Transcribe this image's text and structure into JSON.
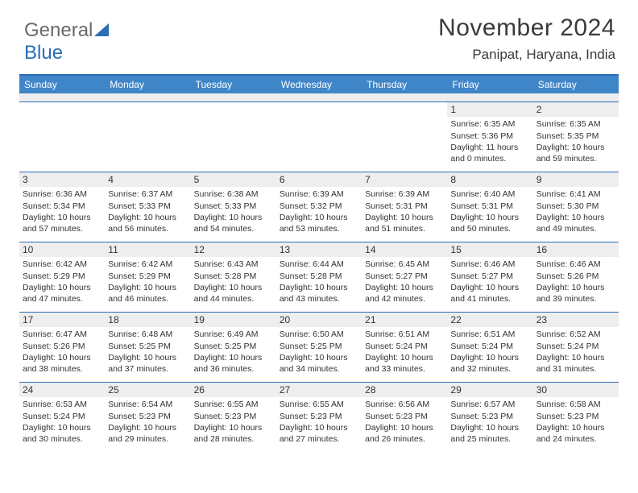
{
  "logo": {
    "part1": "General",
    "part2": "Blue"
  },
  "header": {
    "title": "November 2024",
    "location": "Panipat, Haryana, India"
  },
  "colors": {
    "header_bar": "#3f86c8",
    "border": "#2a6db5",
    "daynum_bg": "#eeeeee",
    "text": "#333333"
  },
  "fonts": {
    "title_size": 30,
    "subtitle_size": 17,
    "dow_size": 12,
    "daynum_size": 12,
    "body_size": 10.5
  },
  "days_of_week": [
    "Sunday",
    "Monday",
    "Tuesday",
    "Wednesday",
    "Thursday",
    "Friday",
    "Saturday"
  ],
  "weeks": [
    [
      null,
      null,
      null,
      null,
      null,
      {
        "n": "1",
        "sunrise": "6:35 AM",
        "sunset": "5:36 PM",
        "daylight": "11 hours and 0 minutes."
      },
      {
        "n": "2",
        "sunrise": "6:35 AM",
        "sunset": "5:35 PM",
        "daylight": "10 hours and 59 minutes."
      }
    ],
    [
      {
        "n": "3",
        "sunrise": "6:36 AM",
        "sunset": "5:34 PM",
        "daylight": "10 hours and 57 minutes."
      },
      {
        "n": "4",
        "sunrise": "6:37 AM",
        "sunset": "5:33 PM",
        "daylight": "10 hours and 56 minutes."
      },
      {
        "n": "5",
        "sunrise": "6:38 AM",
        "sunset": "5:33 PM",
        "daylight": "10 hours and 54 minutes."
      },
      {
        "n": "6",
        "sunrise": "6:39 AM",
        "sunset": "5:32 PM",
        "daylight": "10 hours and 53 minutes."
      },
      {
        "n": "7",
        "sunrise": "6:39 AM",
        "sunset": "5:31 PM",
        "daylight": "10 hours and 51 minutes."
      },
      {
        "n": "8",
        "sunrise": "6:40 AM",
        "sunset": "5:31 PM",
        "daylight": "10 hours and 50 minutes."
      },
      {
        "n": "9",
        "sunrise": "6:41 AM",
        "sunset": "5:30 PM",
        "daylight": "10 hours and 49 minutes."
      }
    ],
    [
      {
        "n": "10",
        "sunrise": "6:42 AM",
        "sunset": "5:29 PM",
        "daylight": "10 hours and 47 minutes."
      },
      {
        "n": "11",
        "sunrise": "6:42 AM",
        "sunset": "5:29 PM",
        "daylight": "10 hours and 46 minutes."
      },
      {
        "n": "12",
        "sunrise": "6:43 AM",
        "sunset": "5:28 PM",
        "daylight": "10 hours and 44 minutes."
      },
      {
        "n": "13",
        "sunrise": "6:44 AM",
        "sunset": "5:28 PM",
        "daylight": "10 hours and 43 minutes."
      },
      {
        "n": "14",
        "sunrise": "6:45 AM",
        "sunset": "5:27 PM",
        "daylight": "10 hours and 42 minutes."
      },
      {
        "n": "15",
        "sunrise": "6:46 AM",
        "sunset": "5:27 PM",
        "daylight": "10 hours and 41 minutes."
      },
      {
        "n": "16",
        "sunrise": "6:46 AM",
        "sunset": "5:26 PM",
        "daylight": "10 hours and 39 minutes."
      }
    ],
    [
      {
        "n": "17",
        "sunrise": "6:47 AM",
        "sunset": "5:26 PM",
        "daylight": "10 hours and 38 minutes."
      },
      {
        "n": "18",
        "sunrise": "6:48 AM",
        "sunset": "5:25 PM",
        "daylight": "10 hours and 37 minutes."
      },
      {
        "n": "19",
        "sunrise": "6:49 AM",
        "sunset": "5:25 PM",
        "daylight": "10 hours and 36 minutes."
      },
      {
        "n": "20",
        "sunrise": "6:50 AM",
        "sunset": "5:25 PM",
        "daylight": "10 hours and 34 minutes."
      },
      {
        "n": "21",
        "sunrise": "6:51 AM",
        "sunset": "5:24 PM",
        "daylight": "10 hours and 33 minutes."
      },
      {
        "n": "22",
        "sunrise": "6:51 AM",
        "sunset": "5:24 PM",
        "daylight": "10 hours and 32 minutes."
      },
      {
        "n": "23",
        "sunrise": "6:52 AM",
        "sunset": "5:24 PM",
        "daylight": "10 hours and 31 minutes."
      }
    ],
    [
      {
        "n": "24",
        "sunrise": "6:53 AM",
        "sunset": "5:24 PM",
        "daylight": "10 hours and 30 minutes."
      },
      {
        "n": "25",
        "sunrise": "6:54 AM",
        "sunset": "5:23 PM",
        "daylight": "10 hours and 29 minutes."
      },
      {
        "n": "26",
        "sunrise": "6:55 AM",
        "sunset": "5:23 PM",
        "daylight": "10 hours and 28 minutes."
      },
      {
        "n": "27",
        "sunrise": "6:55 AM",
        "sunset": "5:23 PM",
        "daylight": "10 hours and 27 minutes."
      },
      {
        "n": "28",
        "sunrise": "6:56 AM",
        "sunset": "5:23 PM",
        "daylight": "10 hours and 26 minutes."
      },
      {
        "n": "29",
        "sunrise": "6:57 AM",
        "sunset": "5:23 PM",
        "daylight": "10 hours and 25 minutes."
      },
      {
        "n": "30",
        "sunrise": "6:58 AM",
        "sunset": "5:23 PM",
        "daylight": "10 hours and 24 minutes."
      }
    ]
  ],
  "labels": {
    "sunrise": "Sunrise: ",
    "sunset": "Sunset: ",
    "daylight": "Daylight: "
  }
}
